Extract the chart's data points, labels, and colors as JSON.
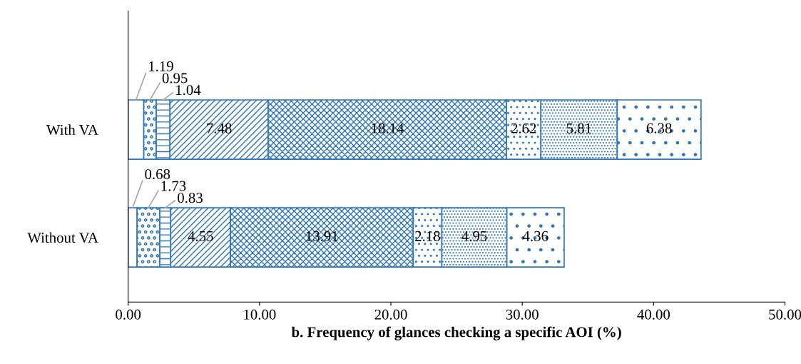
{
  "chart_data": {
    "type": "bar",
    "orientation": "horizontal",
    "stacked": true,
    "categories": [
      "With VA",
      "Without VA"
    ],
    "series": [
      {
        "color": "#2e75b6",
        "values": [
          1.19,
          0.68
        ]
      },
      {
        "color": "#2e75b6",
        "values": [
          0.95,
          1.73
        ]
      },
      {
        "color": "#2e75b6",
        "values": [
          1.04,
          0.83
        ]
      },
      {
        "color": "#2e75b6",
        "values": [
          7.48,
          4.55
        ]
      },
      {
        "color": "#2e75b6",
        "values": [
          18.14,
          13.91
        ]
      },
      {
        "color": "#2e75b6",
        "values": [
          2.62,
          2.18
        ]
      },
      {
        "color": "#2e75b6",
        "values": [
          5.81,
          4.95
        ]
      },
      {
        "color": "#2e75b6",
        "values": [
          6.38,
          4.36
        ]
      }
    ],
    "xlim": [
      0,
      50
    ],
    "xticks": [
      {
        "value": 0,
        "label": "0.00"
      },
      {
        "value": 10,
        "label": "10.00"
      },
      {
        "value": 20,
        "label": "20.00"
      },
      {
        "value": 30,
        "label": "30.00"
      },
      {
        "value": 40,
        "label": "40.00"
      },
      {
        "value": 50,
        "label": "50.00"
      }
    ],
    "xlabel": "b. Frequency of glances checking a specific AOI (%)",
    "data_labels": true,
    "grid": false,
    "legend": false
  }
}
